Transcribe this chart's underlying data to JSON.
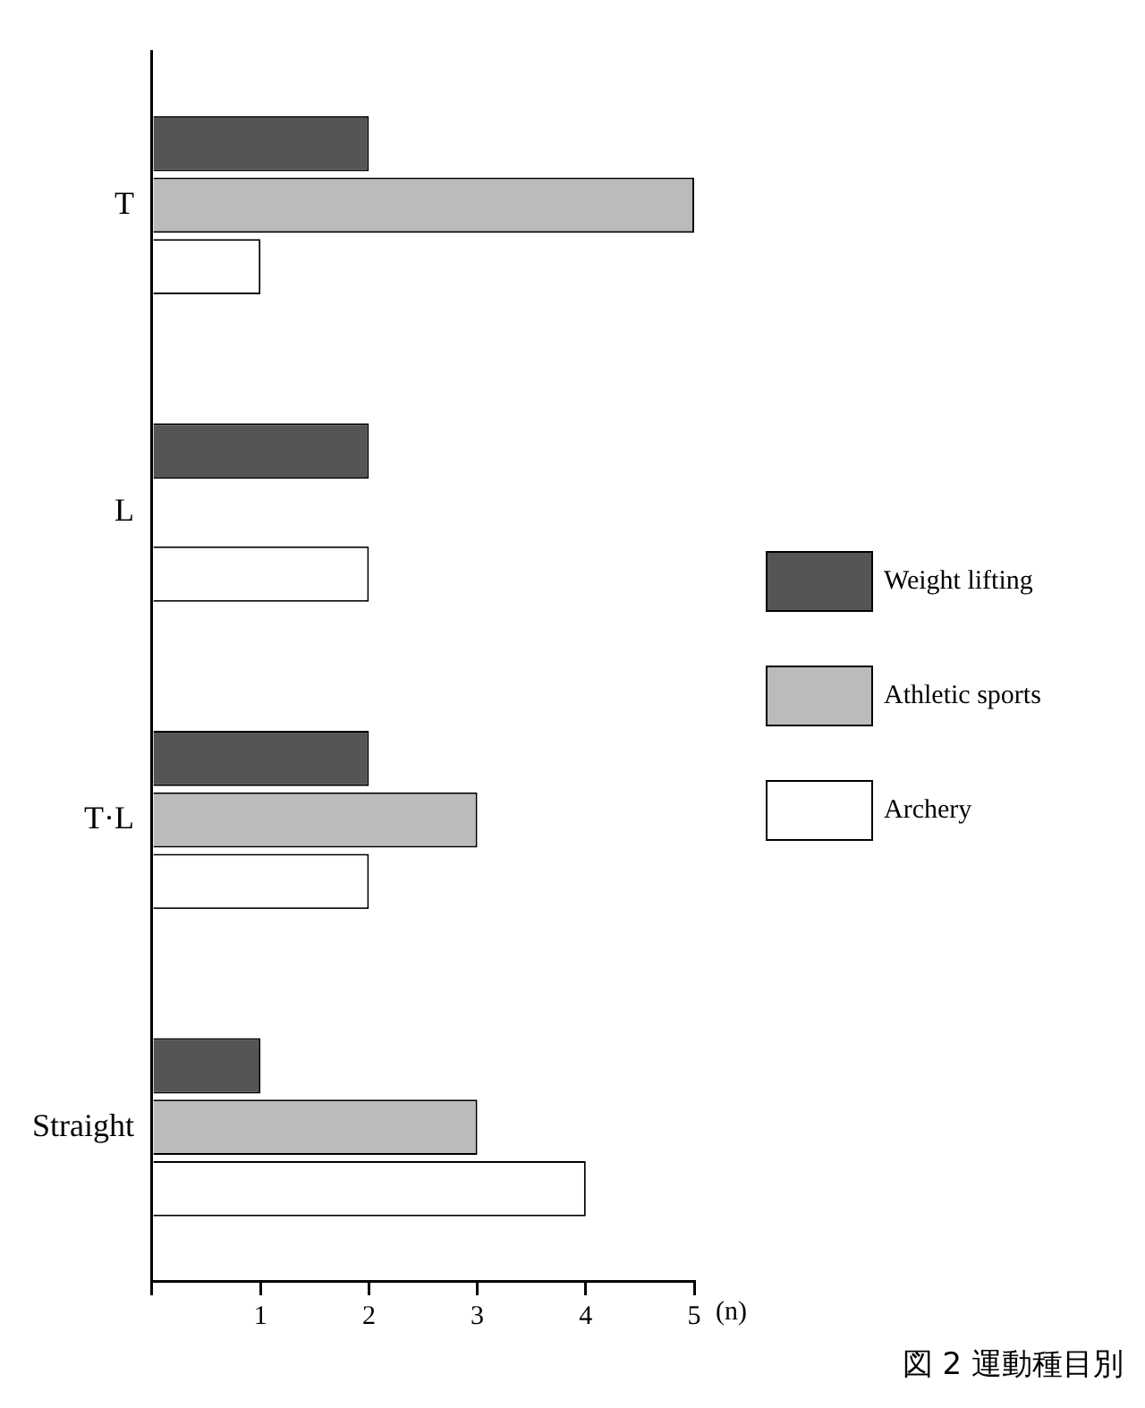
{
  "chart_data": {
    "type": "bar",
    "orientation": "horizontal",
    "categories": [
      "T",
      "L",
      "T·L",
      "Straight"
    ],
    "series": [
      {
        "name": "Weight lifting",
        "color": "#555555",
        "values": [
          2,
          2,
          2,
          1
        ]
      },
      {
        "name": "Athletic sports",
        "color": "#bbbbbb",
        "values": [
          5,
          0,
          3,
          3
        ]
      },
      {
        "name": "Archery",
        "color": "#ffffff",
        "values": [
          1,
          2,
          2,
          4
        ]
      }
    ],
    "xlim": [
      0,
      5
    ],
    "xticks": [
      {
        "value": 0,
        "label": null
      },
      1,
      2,
      3,
      4,
      5
    ],
    "xlabel": "(n)",
    "grid": false,
    "legend": "right",
    "annotations": [
      "図 2 運動種目別"
    ]
  }
}
